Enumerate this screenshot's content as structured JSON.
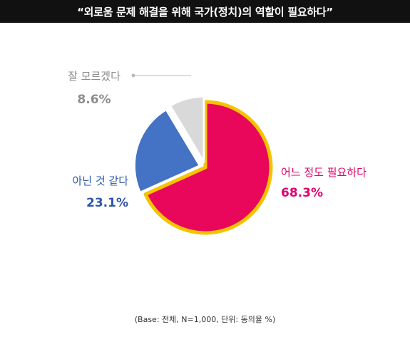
{
  "chart_data": {
    "type": "pie",
    "title": "“외로움 문제 해결을 위해 국가(정치)의 역할이 필요하다”",
    "slices": [
      {
        "label": "어느 정도 필요하다",
        "value": 68.3,
        "value_text": "68.3%",
        "color": "#E8075A",
        "border": "#F5C400"
      },
      {
        "label": "아닌 것 같다",
        "value": 23.1,
        "value_text": "23.1%",
        "color": "#4472C4",
        "border": "#ffffff"
      },
      {
        "label": "잘 모르겠다",
        "value": 8.6,
        "value_text": "8.6%",
        "color": "#D9D9D9",
        "border": "#ffffff"
      }
    ],
    "label_colors": [
      "#E0006A",
      "#2E57A8",
      "#8C8C8C"
    ],
    "footnote": "(Base: 전체, N=1,000, 단위: 동의율 %)"
  }
}
